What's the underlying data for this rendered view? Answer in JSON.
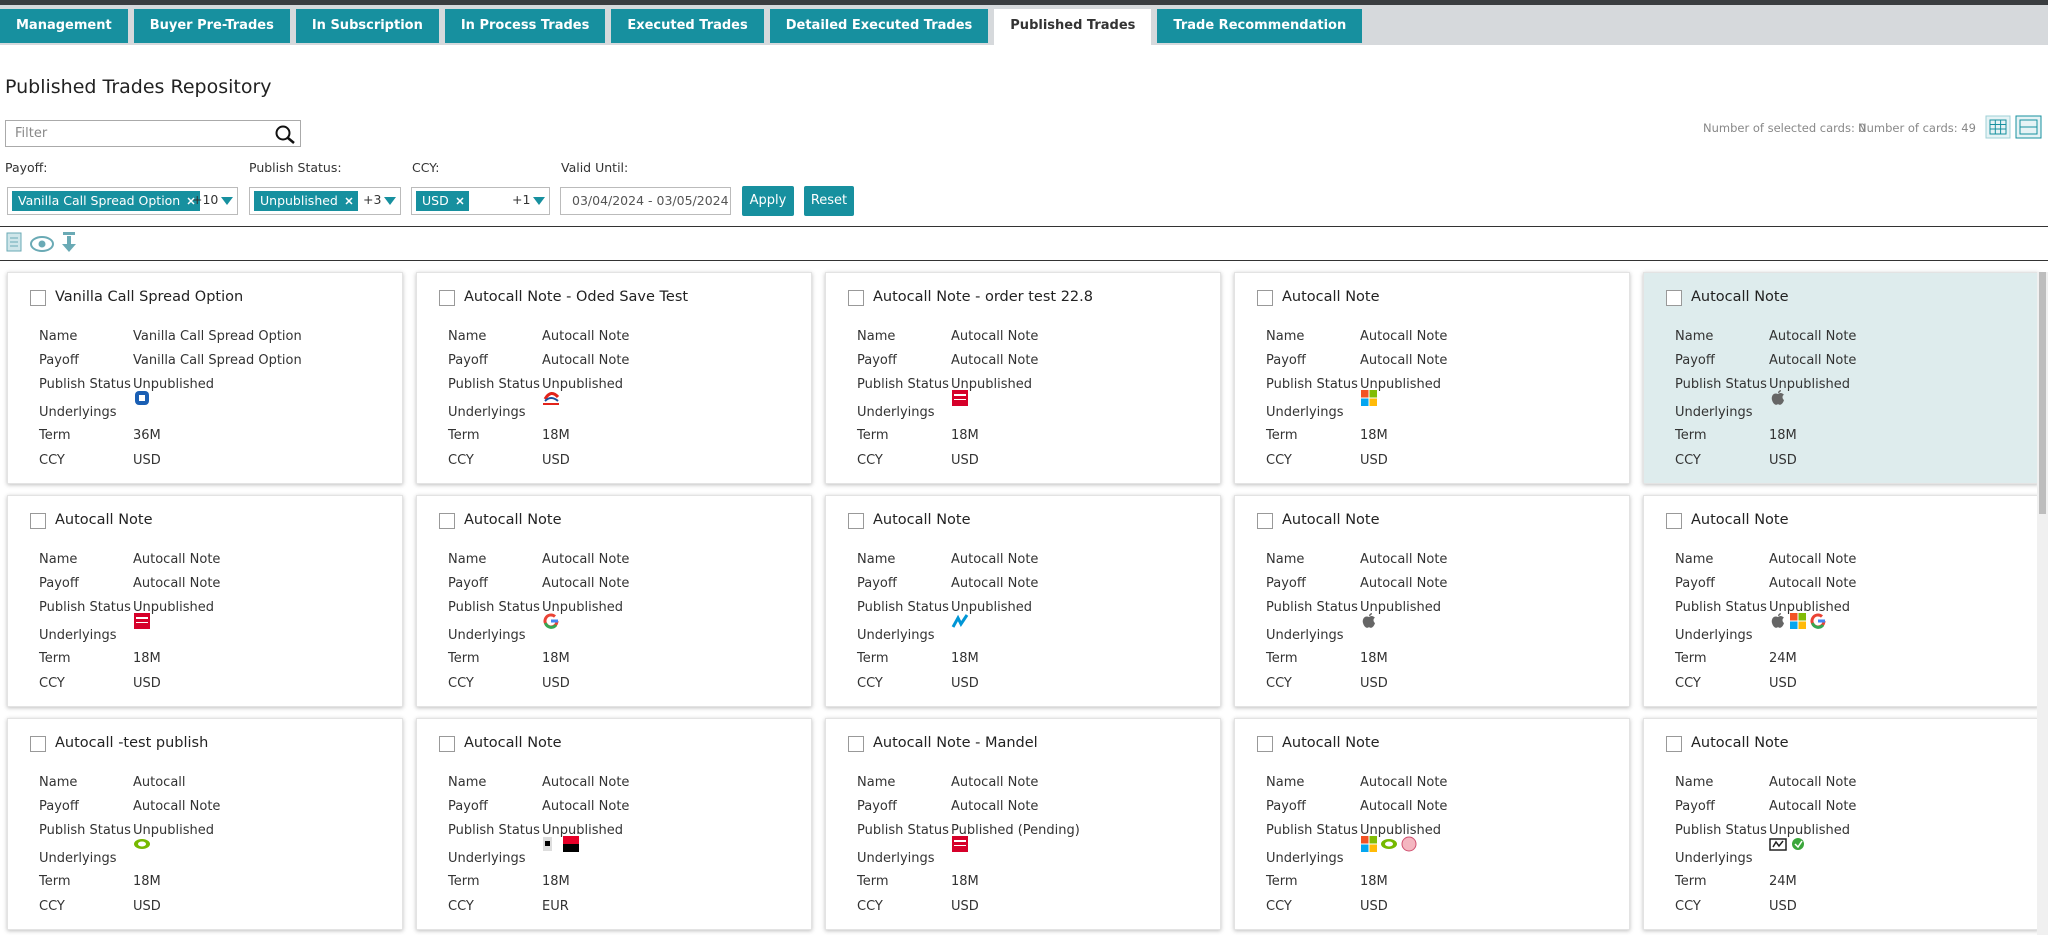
{
  "tabs": [
    "Management",
    "Buyer Pre-Trades",
    "In Subscription",
    "In Process Trades",
    "Executed Trades",
    "Detailed Executed Trades",
    "Published Trades",
    "Trade Recommendation"
  ],
  "active_tab": 6,
  "page_title": "Published Trades Repository",
  "filter_placeholder": "Filter",
  "selected_count": "Number of selected cards: 0",
  "card_count": "Number of cards: 49",
  "filters": {
    "payoff": {
      "label": "Payoff:",
      "chip": "Vanilla Call Spread Option",
      "more": "+10"
    },
    "publish_status": {
      "label": "Publish Status:",
      "chip": "Unpublished",
      "more": "+3"
    },
    "ccy": {
      "label": "CCY:",
      "chip": "USD",
      "more": "+1"
    },
    "valid_until": {
      "label": "Valid Until:",
      "value": "03/04/2024 - 03/05/2024"
    }
  },
  "buttons": {
    "apply": "Apply",
    "reset": "Reset"
  },
  "card_field_labels": {
    "name": "Name",
    "payoff": "Payoff",
    "publish_status": "Publish Status",
    "underlyings": "Underlyings",
    "term": "Term",
    "ccy": "CCY"
  },
  "cards": [
    {
      "title": "Vanilla Call Spread Option",
      "name": "Vanilla Call Spread Option",
      "payoff": "Vanilla Call Spread Option",
      "publish_status": "Unpublished",
      "term": "36M",
      "ccy": "USD"
    },
    {
      "title": "Autocall Note - Oded Save Test",
      "name": "Autocall Note",
      "payoff": "Autocall Note",
      "publish_status": "Unpublished",
      "term": "18M",
      "ccy": "USD"
    },
    {
      "title": "Autocall Note - order test 22.8",
      "name": "Autocall Note",
      "payoff": "Autocall Note",
      "publish_status": "Unpublished",
      "term": "18M",
      "ccy": "USD"
    },
    {
      "title": "Autocall Note",
      "name": "Autocall Note",
      "payoff": "Autocall Note",
      "publish_status": "Unpublished",
      "term": "18M",
      "ccy": "USD"
    },
    {
      "title": "Autocall Note",
      "name": "Autocall Note",
      "payoff": "Autocall Note",
      "publish_status": "Unpublished",
      "term": "18M",
      "ccy": "USD"
    },
    {
      "title": "Autocall Note",
      "name": "Autocall Note",
      "payoff": "Autocall Note",
      "publish_status": "Unpublished",
      "term": "18M",
      "ccy": "USD"
    },
    {
      "title": "Autocall Note",
      "name": "Autocall Note",
      "payoff": "Autocall Note",
      "publish_status": "Unpublished",
      "term": "18M",
      "ccy": "USD"
    },
    {
      "title": "Autocall Note",
      "name": "Autocall Note",
      "payoff": "Autocall Note",
      "publish_status": "Unpublished",
      "term": "18M",
      "ccy": "USD"
    },
    {
      "title": "Autocall Note",
      "name": "Autocall Note",
      "payoff": "Autocall Note",
      "publish_status": "Unpublished",
      "term": "18M",
      "ccy": "USD"
    },
    {
      "title": "Autocall Note",
      "name": "Autocall Note",
      "payoff": "Autocall Note",
      "publish_status": "Unpublished",
      "term": "24M",
      "ccy": "USD"
    },
    {
      "title": "Autocall -test publish",
      "name": "Autocall",
      "payoff": "Autocall Note",
      "publish_status": "Unpublished",
      "term": "18M",
      "ccy": "USD"
    },
    {
      "title": "Autocall Note",
      "name": "Autocall Note",
      "payoff": "Autocall Note",
      "publish_status": "Unpublished",
      "term": "18M",
      "ccy": "EUR"
    },
    {
      "title": "Autocall Note - Mandel",
      "name": "Autocall Note",
      "payoff": "Autocall Note",
      "publish_status": "Published (Pending)",
      "term": "18M",
      "ccy": "USD"
    },
    {
      "title": "Autocall Note",
      "name": "Autocall Note",
      "payoff": "Autocall Note",
      "publish_status": "Unpublished",
      "term": "18M",
      "ccy": "USD"
    },
    {
      "title": "Autocall Note",
      "name": "Autocall Note",
      "payoff": "Autocall Note",
      "publish_status": "Unpublished",
      "term": "24M",
      "ccy": "USD"
    }
  ]
}
